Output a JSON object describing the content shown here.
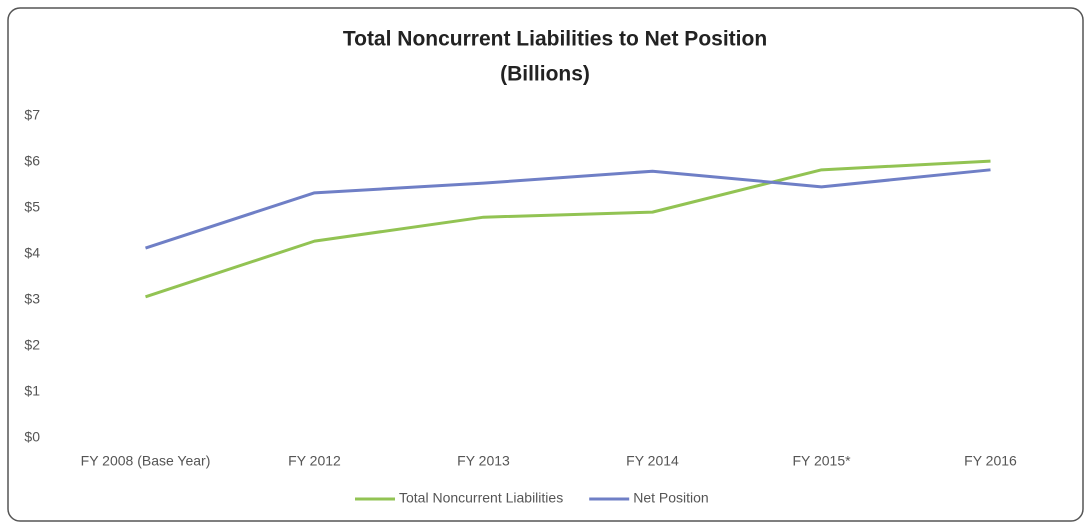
{
  "chart_data": {
    "type": "line",
    "title": "Total Noncurrent Liabilities to Net Position",
    "subtitle": "(Billions)",
    "categories": [
      "FY 2008 (Base Year)",
      "FY 2012",
      "FY 2013",
      "FY 2014",
      "FY 2015*",
      "FY 2016"
    ],
    "series": [
      {
        "name": "Total Noncurrent Liabilities",
        "color": "#92c353",
        "values": [
          3.07,
          4.28,
          4.8,
          4.91,
          5.83,
          6.02
        ]
      },
      {
        "name": "Net Position",
        "color": "#6f7fc6",
        "values": [
          4.13,
          5.33,
          5.54,
          5.8,
          5.46,
          5.83
        ]
      }
    ],
    "ylim": [
      0,
      7
    ],
    "yticks": [
      {
        "value": 0,
        "label": "$0"
      },
      {
        "value": 1,
        "label": "$1"
      },
      {
        "value": 2,
        "label": "$2"
      },
      {
        "value": 3,
        "label": "$3"
      },
      {
        "value": 4,
        "label": "$4"
      },
      {
        "value": 5,
        "label": "$5"
      },
      {
        "value": 6,
        "label": "$6"
      },
      {
        "value": 7,
        "label": "$7"
      }
    ],
    "grid": false,
    "legend": "bottom"
  }
}
